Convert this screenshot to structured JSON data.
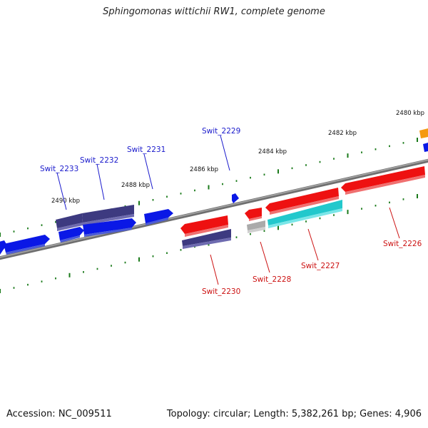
{
  "title": "Sphingomonas wittichii RW1, complete genome",
  "footer": {
    "accession": "Accession: NC_009511",
    "topology": "Topology: circular; Length: 5,382,261 bp; Genes: 4,906"
  },
  "colors": {
    "forward_gene": "#0a18e6",
    "forward_cds_dark": "#3d3a80",
    "reverse_gene": "#ee1111",
    "reverse_cds_cyan": "#22c8cc",
    "pseudo_gray": "#aaaaaa",
    "orange_gene": "#f59a10",
    "backbone": "#808080",
    "tick_green": "#1a7a1a",
    "forward_label": "#1a1acc",
    "reverse_label": "#cc1111"
  },
  "kbp_labels": [
    "2480 kbp",
    "2482 kbp",
    "2484 kbp",
    "2486 kbp",
    "2488 kbp",
    "2490 kbp"
  ],
  "gene_labels": {
    "forward": [
      "Swit_2229",
      "Swit_2231",
      "Swit_2232",
      "Swit_2233"
    ],
    "reverse": [
      "Swit_2226",
      "Swit_2227",
      "Swit_2228",
      "Swit_2230"
    ]
  }
}
